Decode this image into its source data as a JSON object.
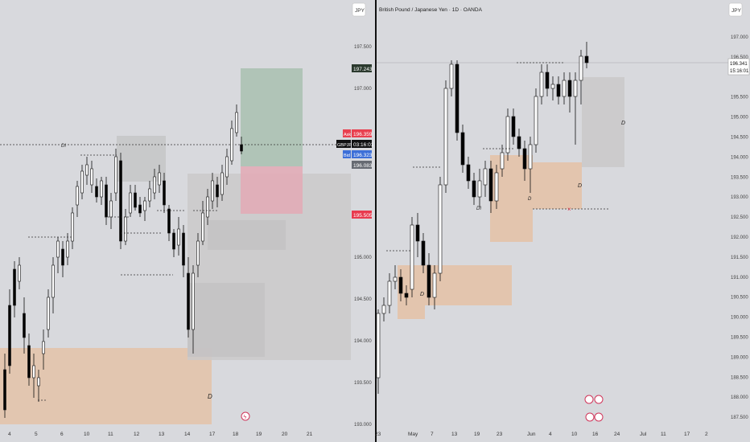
{
  "left_panel": {
    "currency": "JPY",
    "price_ticks": [
      "197.500",
      "197.000",
      "195.000",
      "194.500",
      "194.000",
      "193.500",
      "193.000"
    ],
    "date_ticks": [
      "4",
      "5",
      "6",
      "10",
      "11",
      "12",
      "13",
      "14",
      "17",
      "18",
      "19",
      "20",
      "21"
    ],
    "ask": {
      "label": "Ask",
      "value": "196.359"
    },
    "symbol": {
      "label": "GBPJPY",
      "value": "03:16:01"
    },
    "bid": {
      "label": "Bid",
      "value": "196.323"
    },
    "tp_price": "197.243",
    "sl_price": "195.505",
    "mid_price": "196.083",
    "zone_label": "D",
    "level_label": "DI"
  },
  "right_panel": {
    "title": "British Pound / Japanese Yen · 1D · OANDA",
    "currency": "JPY",
    "price_ticks": [
      "197.000",
      "196.500",
      "195.500",
      "195.000",
      "194.500",
      "194.000",
      "193.500",
      "193.000",
      "192.500",
      "192.000",
      "191.500",
      "191.000",
      "190.500",
      "190.000",
      "189.500",
      "189.000",
      "188.500",
      "188.000",
      "187.500"
    ],
    "current_price": "196.341",
    "countdown": "15:16:01",
    "date_ticks": [
      "23",
      "May",
      "7",
      "13",
      "19",
      "23",
      "Jun",
      "4",
      "10",
      "16",
      "24",
      "Jul",
      "11",
      "17",
      "2"
    ],
    "zone_label": "D",
    "level_label": "DI"
  },
  "colors": {
    "bg": "#d8d9dd",
    "bull": "#ffffff",
    "bear": "#000000",
    "demand_zone": "#e4c2a8",
    "gray_zone": "#c9c7c8",
    "tp_zone": "#a9bfb0",
    "sl_zone": "#e3a9b5",
    "ask": "#e8404f",
    "bid": "#3d6fd8",
    "sl_badge": "#e83a4e",
    "symbol_badge": "#111111"
  }
}
